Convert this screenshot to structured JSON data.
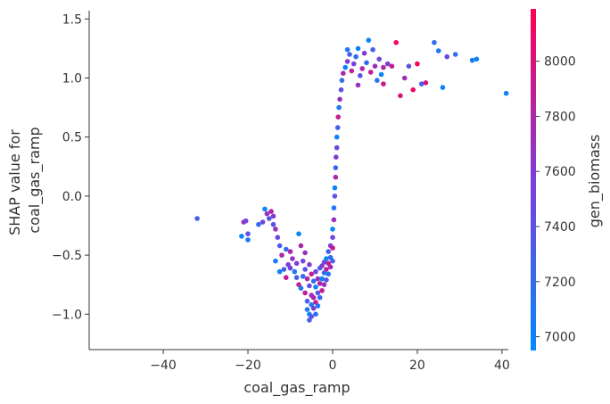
{
  "chart_data": {
    "type": "scatter",
    "xlabel": "coal_gas_ramp",
    "ylabel_lines": [
      "SHAP value for",
      "coal_gas_ramp"
    ],
    "xlim": [
      -57.5,
      41.5
    ],
    "ylim": [
      -1.3,
      1.57
    ],
    "xticks": [
      -40,
      -20,
      0,
      20,
      40
    ],
    "xtick_labels": [
      "−40",
      "−20",
      "0",
      "20",
      "40"
    ],
    "yticks": [
      -1.0,
      -0.5,
      0.0,
      0.5,
      1.0,
      1.5
    ],
    "ytick_labels": [
      "−1.0",
      "−0.5",
      "0.0",
      "0.5",
      "1.0",
      "1.5"
    ],
    "grid": false,
    "colorbar": {
      "label": "gen_biomass",
      "range": [
        6950,
        8190
      ],
      "ticks": [
        7000,
        7200,
        7400,
        7600,
        7800,
        8000
      ],
      "tick_labels": [
        "7000",
        "7200",
        "7400",
        "7600",
        "7800",
        "8000"
      ],
      "color_low": "#008afb",
      "color_mid": "#7d3ddc",
      "color_high": "#ff0052"
    },
    "points": [
      [
        -32,
        -0.19,
        7300
      ],
      [
        -21.5,
        -0.34,
        7000
      ],
      [
        -21,
        -0.22,
        7750
      ],
      [
        -20.5,
        -0.21,
        7500
      ],
      [
        -20,
        -0.37,
        7100
      ],
      [
        -20,
        -0.32,
        7400
      ],
      [
        -17.5,
        -0.24,
        7200
      ],
      [
        -16.5,
        -0.22,
        7500
      ],
      [
        -16,
        -0.11,
        7000
      ],
      [
        -15.5,
        -0.15,
        7700
      ],
      [
        -15,
        -0.19,
        7350
      ],
      [
        -14.5,
        -0.13,
        7800
      ],
      [
        -14,
        -0.17,
        7600
      ],
      [
        -14,
        -0.24,
        7400
      ],
      [
        -13.5,
        -0.28,
        7700
      ],
      [
        -13,
        -0.35,
        7500
      ],
      [
        -12.5,
        -0.42,
        7300
      ],
      [
        -13.5,
        -0.55,
        7100
      ],
      [
        -12,
        -0.5,
        7800
      ],
      [
        -11.5,
        -0.62,
        7300
      ],
      [
        -12.5,
        -0.64,
        7000
      ],
      [
        -11,
        -0.45,
        7200
      ],
      [
        -10.5,
        -0.58,
        7600
      ],
      [
        -11,
        -0.69,
        7900
      ],
      [
        -10,
        -0.47,
        7800
      ],
      [
        -9.5,
        -0.53,
        7700
      ],
      [
        -10,
        -0.61,
        7500
      ],
      [
        -9,
        -0.64,
        7100
      ],
      [
        -8.5,
        -0.57,
        7600
      ],
      [
        -8.5,
        -0.69,
        7300
      ],
      [
        -8,
        -0.32,
        7000
      ],
      [
        -8,
        -0.75,
        7900
      ],
      [
        -7.5,
        -0.42,
        7800
      ],
      [
        -7.5,
        -0.78,
        7100
      ],
      [
        -7,
        -0.55,
        7500
      ],
      [
        -7,
        -0.68,
        7200
      ],
      [
        -6.5,
        -0.48,
        7700
      ],
      [
        -6.5,
        -0.62,
        7400
      ],
      [
        -6.5,
        -0.82,
        7900
      ],
      [
        -6,
        -0.7,
        7800
      ],
      [
        -6,
        -0.89,
        7300
      ],
      [
        -6,
        -0.96,
        7100
      ],
      [
        -5.5,
        -0.58,
        7600
      ],
      [
        -5.5,
        -0.76,
        7500
      ],
      [
        -5.5,
        -1.0,
        7000
      ],
      [
        -5.5,
        -1.05,
        7300
      ],
      [
        -5,
        -0.66,
        7900
      ],
      [
        -5,
        -0.84,
        7700
      ],
      [
        -5,
        -0.92,
        7100
      ],
      [
        -5,
        -1.02,
        7400
      ],
      [
        -4.5,
        -0.72,
        7200
      ],
      [
        -4.5,
        -0.86,
        7800
      ],
      [
        -4.5,
        -0.95,
        7600
      ],
      [
        -4,
        -0.64,
        7500
      ],
      [
        -4,
        -0.77,
        7000
      ],
      [
        -4,
        -0.9,
        7900
      ],
      [
        -4,
        -1.0,
        7200
      ],
      [
        -3.5,
        -0.7,
        7700
      ],
      [
        -3.5,
        -0.82,
        7400
      ],
      [
        -3.5,
        -0.93,
        7100
      ],
      [
        -3,
        -0.61,
        7300
      ],
      [
        -3,
        -0.74,
        7800
      ],
      [
        -3,
        -0.86,
        7200
      ],
      [
        -2.5,
        -0.59,
        7600
      ],
      [
        -2.5,
        -0.7,
        7000
      ],
      [
        -2.5,
        -0.8,
        7900
      ],
      [
        -2,
        -0.56,
        7500
      ],
      [
        -2,
        -0.65,
        7200
      ],
      [
        -2,
        -0.75,
        7700
      ],
      [
        -1.5,
        -0.53,
        7000
      ],
      [
        -1.5,
        -0.62,
        7800
      ],
      [
        -1.5,
        -0.71,
        7400
      ],
      [
        -1,
        -0.47,
        7300
      ],
      [
        -1,
        -0.57,
        7900
      ],
      [
        -1,
        -0.66,
        7100
      ],
      [
        -0.5,
        -0.42,
        7600
      ],
      [
        -0.5,
        -0.52,
        7200
      ],
      [
        -0.5,
        -0.6,
        7800
      ],
      [
        0,
        -0.28,
        7000
      ],
      [
        0,
        -0.35,
        7500
      ],
      [
        0,
        -0.44,
        7900
      ],
      [
        0,
        -0.55,
        7300
      ],
      [
        0.3,
        -0.1,
        7100
      ],
      [
        0.3,
        -0.2,
        7700
      ],
      [
        0.5,
        0.0,
        7400
      ],
      [
        0.5,
        0.07,
        7000
      ],
      [
        0.7,
        0.16,
        7800
      ],
      [
        0.7,
        0.24,
        7200
      ],
      [
        0.8,
        0.33,
        7600
      ],
      [
        1,
        0.41,
        7500
      ],
      [
        1,
        0.5,
        7000
      ],
      [
        1.2,
        0.58,
        7300
      ],
      [
        1.3,
        0.67,
        7900
      ],
      [
        1.5,
        0.75,
        7100
      ],
      [
        1.7,
        0.82,
        7700
      ],
      [
        2,
        0.9,
        7400
      ],
      [
        2.2,
        0.98,
        7200
      ],
      [
        2.5,
        1.04,
        7800
      ],
      [
        3,
        1.09,
        7000
      ],
      [
        3.5,
        1.14,
        7600
      ],
      [
        4,
        1.2,
        7300
      ],
      [
        3.5,
        1.24,
        7100
      ],
      [
        4.5,
        1.06,
        7900
      ],
      [
        5,
        1.12,
        7500
      ],
      [
        5.5,
        1.18,
        7200
      ],
      [
        6,
        1.25,
        7000
      ],
      [
        6,
        0.94,
        7700
      ],
      [
        6.5,
        1.02,
        7400
      ],
      [
        7,
        1.08,
        7800
      ],
      [
        7.5,
        1.21,
        7600
      ],
      [
        8,
        1.13,
        7200
      ],
      [
        8.5,
        1.32,
        7000
      ],
      [
        9,
        1.05,
        7900
      ],
      [
        9.5,
        1.24,
        7300
      ],
      [
        10,
        1.1,
        7700
      ],
      [
        10.5,
        0.98,
        7100
      ],
      [
        11,
        1.16,
        7500
      ],
      [
        11.5,
        1.03,
        7000
      ],
      [
        12,
        1.09,
        7800
      ],
      [
        13,
        1.12,
        7600
      ],
      [
        14,
        1.1,
        7900
      ],
      [
        15,
        1.3,
        8100
      ],
      [
        16,
        0.85,
        8000
      ],
      [
        17,
        1.0,
        7700
      ],
      [
        18,
        1.1,
        7400
      ],
      [
        20,
        1.12,
        8200
      ],
      [
        21,
        0.95,
        7300
      ],
      [
        24,
        1.3,
        7200
      ],
      [
        25,
        1.23,
        7100
      ],
      [
        26,
        0.92,
        7000
      ],
      [
        27,
        1.18,
        7500
      ],
      [
        29,
        1.2,
        7200
      ],
      [
        33,
        1.15,
        7100
      ],
      [
        34,
        1.16,
        7000
      ],
      [
        41,
        0.87,
        7050
      ],
      [
        19,
        0.9,
        8100
      ],
      [
        22,
        0.96,
        8000
      ],
      [
        12,
        0.95,
        7950
      ]
    ]
  }
}
